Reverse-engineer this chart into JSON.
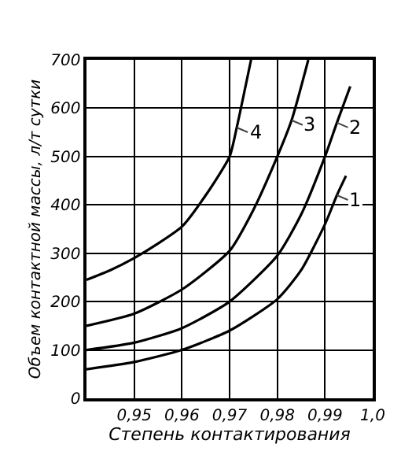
{
  "chart_data": {
    "type": "line",
    "xlabel": "Степень контактирования",
    "ylabel": "Объем контактной массы, л/т сутки",
    "xlim": [
      0.94,
      1.0
    ],
    "xticks": [
      {
        "value": 0.95,
        "label": "0,95"
      },
      {
        "value": 0.96,
        "label": "0,96"
      },
      {
        "value": 0.97,
        "label": "0,97"
      },
      {
        "value": 0.98,
        "label": "0,98"
      },
      {
        "value": 0.99,
        "label": "0,99"
      },
      {
        "value": 1.0,
        "label": "1,0"
      }
    ],
    "ylim": [
      0,
      700
    ],
    "yticks": [
      0,
      100,
      200,
      300,
      400,
      500,
      600,
      700
    ],
    "grid": true,
    "legend": false,
    "marker": "none",
    "line_style": "solid",
    "series": [
      {
        "name": "1",
        "color": "#000000",
        "x": [
          0.94,
          0.95,
          0.96,
          0.97,
          0.98,
          0.985,
          0.99,
          0.9925,
          0.9944
        ],
        "values": [
          60,
          75,
          100,
          140,
          205,
          265,
          360,
          420,
          460
        ]
      },
      {
        "name": "2",
        "color": "#000000",
        "x": [
          0.94,
          0.95,
          0.96,
          0.97,
          0.98,
          0.985,
          0.99,
          0.9925,
          0.9953
        ],
        "values": [
          100,
          115,
          145,
          200,
          295,
          380,
          500,
          570,
          645
        ]
      },
      {
        "name": "3",
        "color": "#000000",
        "x": [
          0.94,
          0.95,
          0.96,
          0.97,
          0.975,
          0.98,
          0.983,
          0.9865
        ],
        "values": [
          150,
          175,
          225,
          305,
          390,
          500,
          575,
          700
        ]
      },
      {
        "name": "4",
        "color": "#000000",
        "x": [
          0.94,
          0.945,
          0.95,
          0.955,
          0.96,
          0.965,
          0.97,
          0.9715,
          0.9745
        ],
        "values": [
          245,
          265,
          290,
          320,
          355,
          420,
          500,
          560,
          700
        ]
      }
    ]
  }
}
